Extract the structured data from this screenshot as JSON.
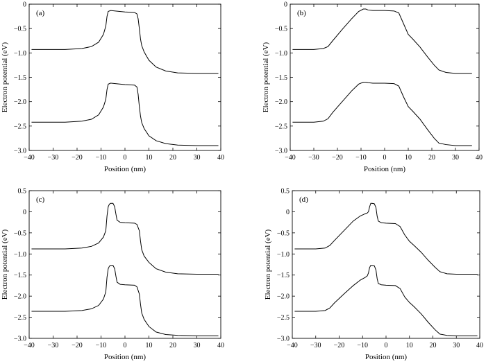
{
  "chart_data": [
    {
      "type": "line",
      "panel_label": "(a)",
      "xlabel": "Position (nm)",
      "ylabel": "Electron potential (eV)",
      "xlim": [
        -40,
        40
      ],
      "ylim": [
        -3.0,
        0
      ],
      "xticks": [
        -40,
        -30,
        -20,
        -10,
        0,
        10,
        20,
        30,
        40
      ],
      "xtick_labels": [
        "−40",
        "−30",
        "−20",
        "−10",
        "0",
        "10",
        "20",
        "30",
        "40"
      ],
      "yticks": [
        0,
        -0.5,
        -1.0,
        -1.5,
        -2.0,
        -2.5,
        -3.0
      ],
      "ytick_labels": [
        "0",
        "−0.5",
        "−1.0",
        "−1.5",
        "−2.0",
        "−2.5",
        "−3.0"
      ],
      "grid": false,
      "series": [
        {
          "x": [
            -39,
            -25,
            -18,
            -14,
            -11,
            -9,
            -8,
            -7.5,
            -7,
            -6,
            -4,
            0,
            4,
            5,
            5.5,
            6,
            6.5,
            7,
            8,
            10,
            13,
            17,
            22,
            30,
            39
          ],
          "y": [
            -0.93,
            -0.93,
            -0.91,
            -0.87,
            -0.78,
            -0.62,
            -0.45,
            -0.25,
            -0.15,
            -0.13,
            -0.14,
            -0.16,
            -0.17,
            -0.2,
            -0.3,
            -0.5,
            -0.72,
            -0.85,
            -0.98,
            -1.15,
            -1.29,
            -1.37,
            -1.41,
            -1.42,
            -1.42
          ]
        },
        {
          "x": [
            -39,
            -25,
            -18,
            -14,
            -11,
            -9,
            -8,
            -7.5,
            -7,
            -6,
            -4,
            0,
            4,
            5,
            5.5,
            6,
            6.5,
            7,
            8,
            10,
            13,
            17,
            22,
            30,
            39
          ],
          "y": [
            -2.42,
            -2.42,
            -2.4,
            -2.36,
            -2.27,
            -2.11,
            -1.95,
            -1.75,
            -1.64,
            -1.62,
            -1.63,
            -1.65,
            -1.66,
            -1.7,
            -1.85,
            -2.1,
            -2.3,
            -2.43,
            -2.55,
            -2.7,
            -2.8,
            -2.86,
            -2.89,
            -2.9,
            -2.9
          ]
        }
      ]
    },
    {
      "type": "line",
      "panel_label": "(b)",
      "xlabel": "Position (nm)",
      "ylabel": "Electron potential (eV)",
      "xlim": [
        -40,
        40
      ],
      "ylim": [
        -3.0,
        0
      ],
      "xticks": [
        -40,
        -30,
        -20,
        -10,
        0,
        10,
        20,
        30,
        40
      ],
      "xtick_labels": [
        "−40",
        "−30",
        "−20",
        "−10",
        "0",
        "10",
        "20",
        "30",
        "40"
      ],
      "yticks": [
        0,
        -0.5,
        -1.0,
        -1.5,
        -2.0,
        -2.5,
        -3.0
      ],
      "ytick_labels": [
        "0",
        "−0.5",
        "−1.0",
        "−1.5",
        "−2.0",
        "−2.5",
        "−3.0"
      ],
      "grid": false,
      "series": [
        {
          "x": [
            -39,
            -30,
            -26,
            -24,
            -22,
            -18,
            -14,
            -11,
            -9,
            -8,
            -7,
            -5,
            0,
            4,
            6,
            8,
            10,
            12,
            15,
            18,
            21,
            23,
            26,
            30,
            37
          ],
          "y": [
            -0.93,
            -0.93,
            -0.91,
            -0.87,
            -0.75,
            -0.52,
            -0.3,
            -0.15,
            -0.1,
            -0.1,
            -0.12,
            -0.13,
            -0.13,
            -0.14,
            -0.18,
            -0.4,
            -0.62,
            -0.72,
            -0.88,
            -1.07,
            -1.25,
            -1.35,
            -1.4,
            -1.42,
            -1.42
          ]
        },
        {
          "x": [
            -39,
            -30,
            -26,
            -24,
            -22,
            -18,
            -14,
            -11,
            -9,
            -8,
            -7,
            -5,
            0,
            4,
            6,
            8,
            10,
            12,
            15,
            18,
            21,
            23,
            26,
            30,
            37
          ],
          "y": [
            -2.42,
            -2.42,
            -2.4,
            -2.35,
            -2.22,
            -2.0,
            -1.78,
            -1.64,
            -1.6,
            -1.6,
            -1.61,
            -1.62,
            -1.62,
            -1.63,
            -1.68,
            -1.9,
            -2.1,
            -2.2,
            -2.36,
            -2.56,
            -2.75,
            -2.85,
            -2.88,
            -2.9,
            -2.9
          ]
        }
      ]
    },
    {
      "type": "line",
      "panel_label": "(c)",
      "xlabel": "Position (nm)",
      "ylabel": "Electron potential (eV)",
      "xlim": [
        -40,
        40
      ],
      "ylim": [
        -3.0,
        0.5
      ],
      "xticks": [
        -40,
        -30,
        -20,
        -10,
        0,
        10,
        20,
        30,
        40
      ],
      "xtick_labels": [
        "−40",
        "−30",
        "−20",
        "−10",
        "0",
        "10",
        "20",
        "30",
        "40"
      ],
      "yticks": [
        0.5,
        0,
        -0.5,
        -1.0,
        -1.5,
        -2.0,
        -2.5,
        -3.0
      ],
      "ytick_labels": [
        "0.5",
        "0",
        "−0.5",
        "−1.0",
        "−1.5",
        "−2.0",
        "−2.5",
        "−3.0"
      ],
      "grid": false,
      "series": [
        {
          "x": [
            -39,
            -25,
            -18,
            -14,
            -11,
            -9,
            -8,
            -7.5,
            -7,
            -6.5,
            -6,
            -5,
            -4.3,
            -3.8,
            -3.3,
            -2,
            0,
            4,
            5,
            6,
            6.5,
            7,
            8,
            10,
            13,
            17,
            22,
            30,
            39
          ],
          "y": [
            -0.88,
            -0.88,
            -0.86,
            -0.82,
            -0.74,
            -0.6,
            -0.45,
            -0.1,
            0.12,
            0.18,
            0.2,
            0.2,
            0.12,
            -0.05,
            -0.2,
            -0.25,
            -0.26,
            -0.27,
            -0.3,
            -0.45,
            -0.7,
            -0.9,
            -1.05,
            -1.2,
            -1.35,
            -1.43,
            -1.47,
            -1.48,
            -1.48
          ]
        },
        {
          "x": [
            -39,
            -25,
            -18,
            -14,
            -11,
            -9,
            -8,
            -7.5,
            -7,
            -6.5,
            -6,
            -5,
            -4.3,
            -3.8,
            -3.3,
            -2,
            0,
            4,
            5,
            6,
            6.5,
            7,
            8,
            10,
            13,
            17,
            22,
            30,
            39
          ],
          "y": [
            -2.36,
            -2.36,
            -2.34,
            -2.3,
            -2.22,
            -2.07,
            -1.9,
            -1.55,
            -1.35,
            -1.29,
            -1.27,
            -1.27,
            -1.35,
            -1.52,
            -1.67,
            -1.72,
            -1.73,
            -1.74,
            -1.78,
            -1.95,
            -2.2,
            -2.4,
            -2.55,
            -2.72,
            -2.85,
            -2.91,
            -2.93,
            -2.94,
            -2.94
          ]
        }
      ]
    },
    {
      "type": "line",
      "panel_label": "(d)",
      "xlabel": "Position (nm)",
      "ylabel": "Electron potential (eV)",
      "xlim": [
        -40,
        40
      ],
      "ylim": [
        -3.0,
        0.5
      ],
      "xticks": [
        -40,
        -30,
        -20,
        -10,
        0,
        10,
        20,
        30,
        40
      ],
      "xtick_labels": [
        "−40",
        "−30",
        "−20",
        "−10",
        "0",
        "10",
        "20",
        "30",
        "40"
      ],
      "yticks": [
        0.5,
        0,
        -0.5,
        -1.0,
        -1.5,
        -2.0,
        -2.5,
        -3.0
      ],
      "ytick_labels": [
        "0.5",
        "0",
        "−0.5",
        "−1.0",
        "−1.5",
        "−2.0",
        "−2.5",
        "−3.0"
      ],
      "grid": false,
      "series": [
        {
          "x": [
            -39,
            -30,
            -26,
            -24,
            -22,
            -18,
            -14,
            -11,
            -9,
            -8,
            -7.5,
            -7,
            -6.5,
            -6,
            -5,
            -4.3,
            -3.8,
            -3.3,
            -2,
            0,
            4,
            6,
            8,
            10,
            12,
            15,
            18,
            21,
            23,
            26,
            30,
            39
          ],
          "y": [
            -0.88,
            -0.88,
            -0.86,
            -0.8,
            -0.68,
            -0.45,
            -0.22,
            -0.1,
            -0.05,
            -0.03,
            0.0,
            0.12,
            0.2,
            0.2,
            0.19,
            0.1,
            -0.1,
            -0.22,
            -0.26,
            -0.27,
            -0.28,
            -0.35,
            -0.55,
            -0.7,
            -0.8,
            -0.96,
            -1.15,
            -1.32,
            -1.42,
            -1.47,
            -1.48,
            -1.48
          ]
        },
        {
          "x": [
            -39,
            -30,
            -26,
            -24,
            -22,
            -18,
            -14,
            -11,
            -9,
            -8,
            -7.5,
            -7,
            -6.5,
            -6,
            -5,
            -4.3,
            -3.8,
            -3.3,
            -2,
            0,
            4,
            6,
            8,
            10,
            12,
            15,
            18,
            21,
            23,
            26,
            30,
            39
          ],
          "y": [
            -2.36,
            -2.36,
            -2.34,
            -2.28,
            -2.16,
            -1.95,
            -1.75,
            -1.62,
            -1.56,
            -1.52,
            -1.45,
            -1.32,
            -1.27,
            -1.27,
            -1.28,
            -1.38,
            -1.58,
            -1.7,
            -1.73,
            -1.74,
            -1.75,
            -1.82,
            -2.02,
            -2.15,
            -2.25,
            -2.42,
            -2.62,
            -2.8,
            -2.9,
            -2.93,
            -2.94,
            -2.94
          ]
        }
      ]
    }
  ]
}
